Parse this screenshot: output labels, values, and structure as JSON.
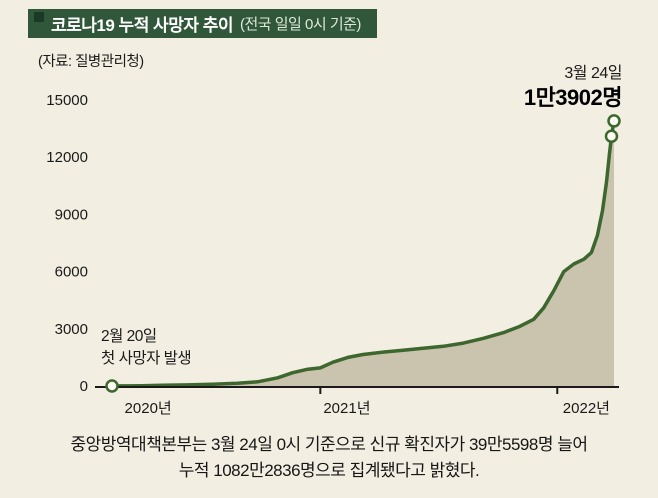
{
  "header": {
    "title": "코로나19 누적 사망자 추이",
    "subtitle": "(전국 일일 0시 기준)"
  },
  "source": "(자료: 질병관리청)",
  "peak": {
    "date": "3월 24일",
    "value": "1만3902명"
  },
  "first_death": {
    "line1": "2월 20일",
    "line2": "첫 사망자 발생"
  },
  "footer": {
    "line1": "중앙방역대책본부는 3월 24일 0시 기준으로 신규 확진자가 39만5598명 늘어",
    "line2": "누적 1082만2836명으로 집계됐다고 밝혔다."
  },
  "colors": {
    "background": "#f2eee1",
    "header_green": "#30573a",
    "line_green": "#3d672e",
    "area_fill": "#cac3ae",
    "marker_fill": "#fcfbf4",
    "axis": "#1a1a1a"
  },
  "chart_data": {
    "type": "area",
    "title": "코로나19 누적 사망자 추이 (전국 일일 0시 기준)",
    "source": "질병관리청",
    "ylim": [
      0,
      15000
    ],
    "y_ticks": [
      0,
      3000,
      6000,
      9000,
      12000,
      15000
    ],
    "x_ticks": [
      {
        "label": "2020년",
        "label_t": 0.072,
        "tick_t": null
      },
      {
        "label": "2021년",
        "label_t": 0.468,
        "tick_t": 0.415
      },
      {
        "label": "2022년",
        "label_t": 0.945,
        "tick_t": 0.887
      }
    ],
    "annotations": [
      {
        "text": "2월 20일 첫 사망자 발생",
        "t": 0.0,
        "v": 0
      },
      {
        "text": "3월 24일 1만3902명",
        "t": 1.0,
        "v": 13902
      }
    ],
    "points": [
      [
        0.0,
        0
      ],
      [
        0.02,
        5
      ],
      [
        0.06,
        15
      ],
      [
        0.1,
        35
      ],
      [
        0.15,
        60
      ],
      [
        0.2,
        90
      ],
      [
        0.25,
        140
      ],
      [
        0.29,
        220
      ],
      [
        0.33,
        430
      ],
      [
        0.36,
        700
      ],
      [
        0.39,
        880
      ],
      [
        0.415,
        950
      ],
      [
        0.44,
        1250
      ],
      [
        0.47,
        1500
      ],
      [
        0.5,
        1650
      ],
      [
        0.54,
        1780
      ],
      [
        0.58,
        1880
      ],
      [
        0.62,
        1980
      ],
      [
        0.66,
        2080
      ],
      [
        0.7,
        2250
      ],
      [
        0.74,
        2500
      ],
      [
        0.78,
        2800
      ],
      [
        0.81,
        3100
      ],
      [
        0.84,
        3500
      ],
      [
        0.86,
        4100
      ],
      [
        0.88,
        5000
      ],
      [
        0.9,
        6000
      ],
      [
        0.92,
        6400
      ],
      [
        0.94,
        6650
      ],
      [
        0.955,
        7000
      ],
      [
        0.967,
        7900
      ],
      [
        0.977,
        9200
      ],
      [
        0.985,
        10700
      ],
      [
        0.991,
        12200
      ],
      [
        0.995,
        13100
      ],
      [
        1.0,
        13902
      ]
    ],
    "markers": [
      {
        "t": 0.0,
        "v": 0
      },
      {
        "t": 0.995,
        "v": 13100
      },
      {
        "t": 1.0,
        "v": 13902
      }
    ]
  }
}
